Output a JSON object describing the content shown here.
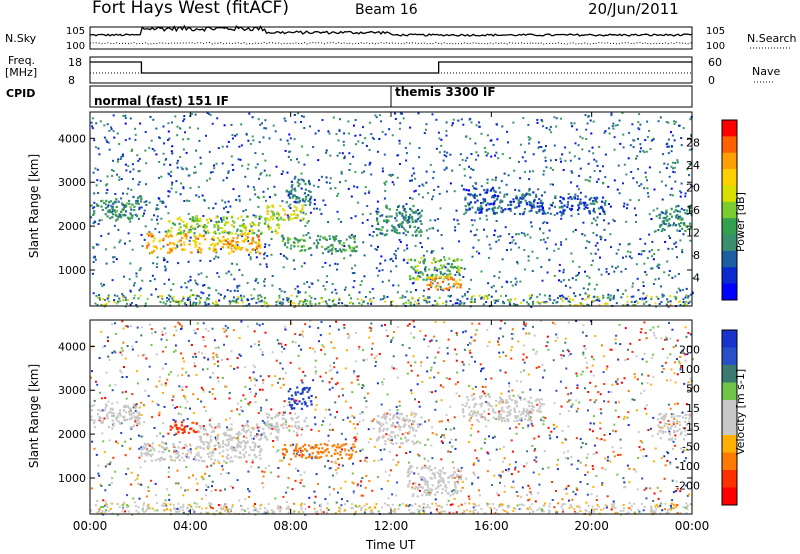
{
  "header": {
    "station": "Fort Hays West (fitACF)",
    "beam": "Beam 16",
    "date": "20/Jun/2011"
  },
  "noise_panel": {
    "left_label": "N.Sky",
    "right_label": "N.Search",
    "left_ticks": [
      "10^5",
      "10^0"
    ],
    "right_ticks": [
      "10^5",
      "10^0"
    ]
  },
  "freq_panel": {
    "left_label_1": "Freq.",
    "left_label_2": "[MHz]",
    "right_label": "Nave",
    "left_ticks": [
      "18",
      "8"
    ],
    "right_ticks": [
      "60",
      "0"
    ]
  },
  "cpid": {
    "label": "CPID",
    "modes": [
      {
        "name": "normal (fast) 151 IF",
        "start_hour": 0
      },
      {
        "name": "themis 3300 IF",
        "start_hour": 12
      }
    ]
  },
  "time_axis": {
    "title": "Time UT",
    "ticks": [
      "00:00",
      "04:00",
      "08:00",
      "12:00",
      "16:00",
      "20:00",
      "00:00"
    ]
  },
  "power_colorbar": {
    "title": "Power [dB]",
    "ticks": [
      "28",
      "24",
      "20",
      "16",
      "12",
      "8",
      "4"
    ],
    "colors": [
      "#ff0000",
      "#ff6000",
      "#ff9f00",
      "#ffd000",
      "#d8e000",
      "#7acc30",
      "#33a050",
      "#3a8f70",
      "#1a5fa0",
      "#0a2ad0",
      "#0000ff"
    ]
  },
  "velocity_colorbar": {
    "title": "Velocity [m s-1]",
    "ticks": [
      "200",
      "100",
      "50",
      "15",
      "-15",
      "-50",
      "-100",
      "-200"
    ],
    "colors": [
      "#1a33cc",
      "#2a50c8",
      "#3a7a70",
      "#6fc44a",
      "#c8c8c8",
      "#c8c8c8",
      "#ffb000",
      "#ff7a00",
      "#ff3000",
      "#ff0000"
    ]
  },
  "chart_data": [
    {
      "type": "heatmap",
      "name": "power",
      "ylabel": "Slant Range [km]",
      "xlabel": "Time UT",
      "xlim": [
        0,
        24
      ],
      "ylim": [
        180,
        4600
      ],
      "yticks": [
        1000,
        2000,
        3000,
        4000
      ],
      "xticks": [
        0,
        4,
        8,
        12,
        16,
        20,
        24
      ],
      "colorbar_label": "Power [dB]",
      "colorbar_range": [
        0,
        30
      ],
      "patches": [
        {
          "t0": 0.0,
          "t1": 2.0,
          "r0": 2150,
          "r1": 2700,
          "val": 10
        },
        {
          "t0": 2.2,
          "t1": 6.8,
          "r0": 1400,
          "r1": 1850,
          "val": 22
        },
        {
          "t0": 3.0,
          "t1": 7.5,
          "r0": 1850,
          "r1": 2250,
          "val": 16
        },
        {
          "t0": 7.0,
          "t1": 8.6,
          "r0": 2150,
          "r1": 2500,
          "val": 18
        },
        {
          "t0": 7.8,
          "t1": 8.8,
          "r0": 2500,
          "r1": 3100,
          "val": 8
        },
        {
          "t0": 7.6,
          "t1": 10.6,
          "r0": 1450,
          "r1": 1800,
          "val": 12
        },
        {
          "t0": 11.4,
          "t1": 13.2,
          "r0": 1800,
          "r1": 2500,
          "val": 10
        },
        {
          "t0": 12.6,
          "t1": 14.8,
          "r0": 800,
          "r1": 1300,
          "val": 14
        },
        {
          "t0": 13.4,
          "t1": 14.8,
          "r0": 550,
          "r1": 900,
          "val": 24
        },
        {
          "t0": 14.8,
          "t1": 18.0,
          "r0": 2300,
          "r1": 2900,
          "val": 6
        },
        {
          "t0": 18.0,
          "t1": 20.5,
          "r0": 2300,
          "r1": 2700,
          "val": 6
        },
        {
          "t0": 22.6,
          "t1": 24.0,
          "r0": 1900,
          "r1": 2500,
          "val": 10
        }
      ]
    },
    {
      "type": "heatmap",
      "name": "velocity",
      "ylabel": "Slant Range [km]",
      "xlabel": "Time UT",
      "xlim": [
        0,
        24
      ],
      "ylim": [
        180,
        4600
      ],
      "yticks": [
        1000,
        2000,
        3000,
        4000
      ],
      "xticks": [
        0,
        4,
        8,
        12,
        16,
        20,
        24
      ],
      "colorbar_label": "Velocity [m s-1]",
      "colorbar_range": [
        -250,
        250
      ],
      "patches": [
        {
          "t0": 0.0,
          "t1": 2.0,
          "r0": 2150,
          "r1": 2700,
          "val": 0
        },
        {
          "t0": 2.0,
          "t1": 6.8,
          "r0": 1400,
          "r1": 1850,
          "val": 0
        },
        {
          "t0": 3.0,
          "t1": 4.3,
          "r0": 2000,
          "r1": 2300,
          "val": -180
        },
        {
          "t0": 4.3,
          "t1": 7.5,
          "r0": 1850,
          "r1": 2250,
          "val": 0
        },
        {
          "t0": 7.0,
          "t1": 8.6,
          "r0": 2150,
          "r1": 2500,
          "val": 0
        },
        {
          "t0": 7.8,
          "t1": 8.8,
          "r0": 2600,
          "r1": 3100,
          "val": 200
        },
        {
          "t0": 7.6,
          "t1": 10.6,
          "r0": 1450,
          "r1": 1800,
          "val": -120
        },
        {
          "t0": 11.4,
          "t1": 13.2,
          "r0": 1800,
          "r1": 2500,
          "val": 20
        },
        {
          "t0": 12.6,
          "t1": 14.8,
          "r0": 600,
          "r1": 1300,
          "val": 0
        },
        {
          "t0": 14.8,
          "t1": 18.0,
          "r0": 2300,
          "r1": 2900,
          "val": 0
        },
        {
          "t0": 22.6,
          "t1": 24.0,
          "r0": 1900,
          "r1": 2500,
          "val": 0
        }
      ]
    }
  ]
}
